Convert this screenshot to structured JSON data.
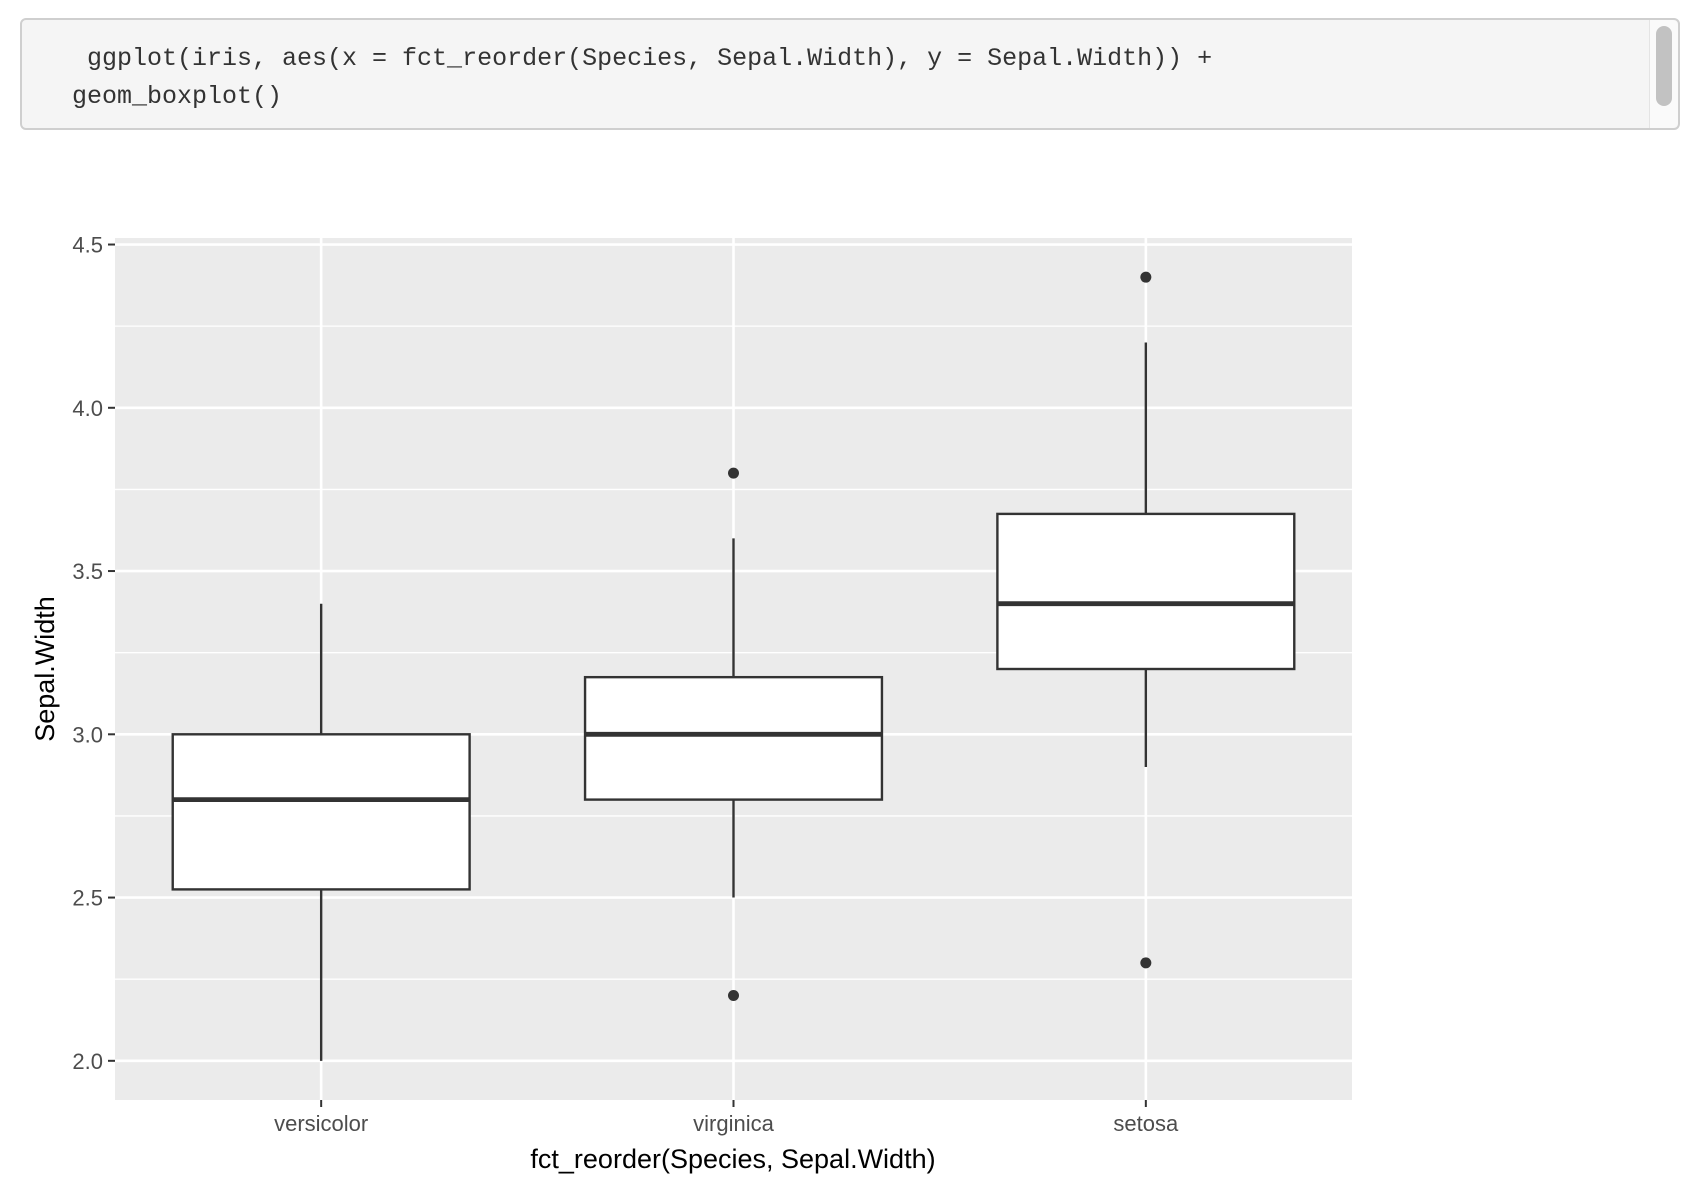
{
  "code": {
    "line1": " ggplot(iris, aes(x = fct_reorder(Species, Sepal.Width), y = Sepal.Width)) +",
    "line2": "geom_boxplot()"
  },
  "colors": {
    "panel_bg": "#ebebeb",
    "grid": "#ffffff",
    "box_stroke": "#333333",
    "text": "#4d4d4d"
  },
  "chart_data": {
    "type": "boxplot",
    "title": "",
    "xlabel": "fct_reorder(Species, Sepal.Width)",
    "ylabel": "Sepal.Width",
    "ylim": [
      1.88,
      4.52
    ],
    "yticks": [
      2.0,
      2.5,
      3.0,
      3.5,
      4.0,
      4.5
    ],
    "ytick_labels": [
      "2.0",
      "2.5",
      "3.0",
      "3.5",
      "4.0",
      "4.5"
    ],
    "grid": true,
    "categories": [
      "versicolor",
      "virginica",
      "setosa"
    ],
    "boxes": [
      {
        "category": "versicolor",
        "min": 2.0,
        "q1": 2.525,
        "median": 2.8,
        "q3": 3.0,
        "max": 3.4,
        "outliers": []
      },
      {
        "category": "virginica",
        "min": 2.5,
        "q1": 2.8,
        "median": 3.0,
        "q3": 3.175,
        "max": 3.6,
        "outliers": [
          3.8,
          2.2
        ]
      },
      {
        "category": "setosa",
        "min": 2.9,
        "q1": 3.2,
        "median": 3.4,
        "q3": 3.675,
        "max": 4.2,
        "outliers": [
          4.4,
          2.3
        ]
      }
    ]
  }
}
